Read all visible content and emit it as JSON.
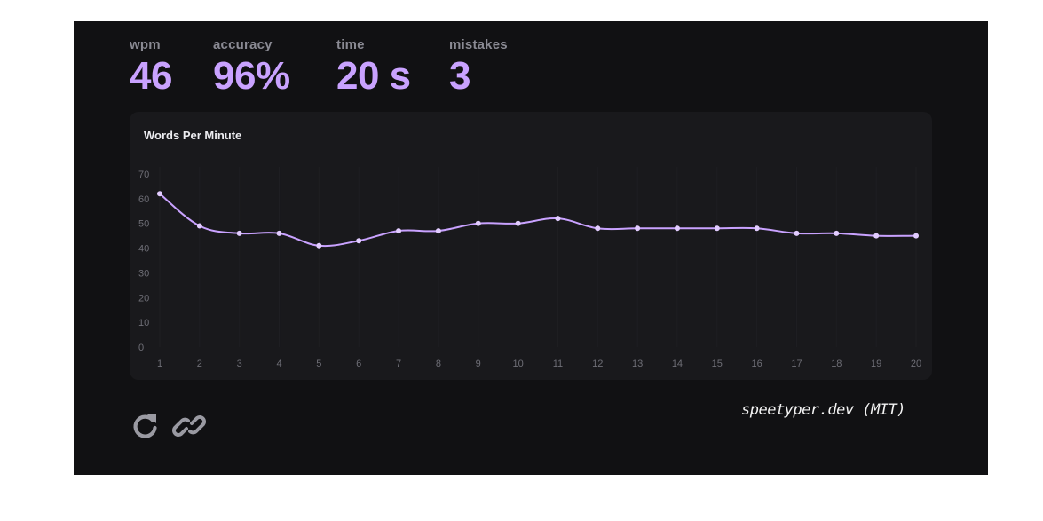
{
  "stats": {
    "wpm": {
      "label": "wpm",
      "value": "46"
    },
    "accuracy": {
      "label": "accuracy",
      "value": "96%"
    },
    "time": {
      "label": "time",
      "value": "20 s"
    },
    "mistakes": {
      "label": "mistakes",
      "value": "3"
    }
  },
  "chart_data": {
    "type": "line",
    "title": "Words Per Minute",
    "xlabel": "",
    "ylabel": "",
    "x": [
      1,
      2,
      3,
      4,
      5,
      6,
      7,
      8,
      9,
      10,
      11,
      12,
      13,
      14,
      15,
      16,
      17,
      18,
      19,
      20
    ],
    "values": [
      62,
      49,
      46,
      46,
      41,
      43,
      47,
      47,
      50,
      50,
      52,
      48,
      48,
      48,
      48,
      48,
      46,
      46,
      45,
      45
    ],
    "yticks": [
      0,
      10,
      20,
      30,
      40,
      50,
      60,
      70
    ],
    "ylim": [
      0,
      70
    ],
    "xlim": [
      1,
      20
    ],
    "line_color": "#c9a2ff",
    "grid": true,
    "legend": "none"
  },
  "actions": {
    "restart": {
      "icon": "restart-icon"
    },
    "share": {
      "icon": "link-icon"
    }
  },
  "brand": {
    "text": "speetyper.dev (MIT)"
  },
  "colors": {
    "accent": "#c9a2ff",
    "background": "#111113",
    "card": "#19191c",
    "muted": "#8a8a93"
  }
}
